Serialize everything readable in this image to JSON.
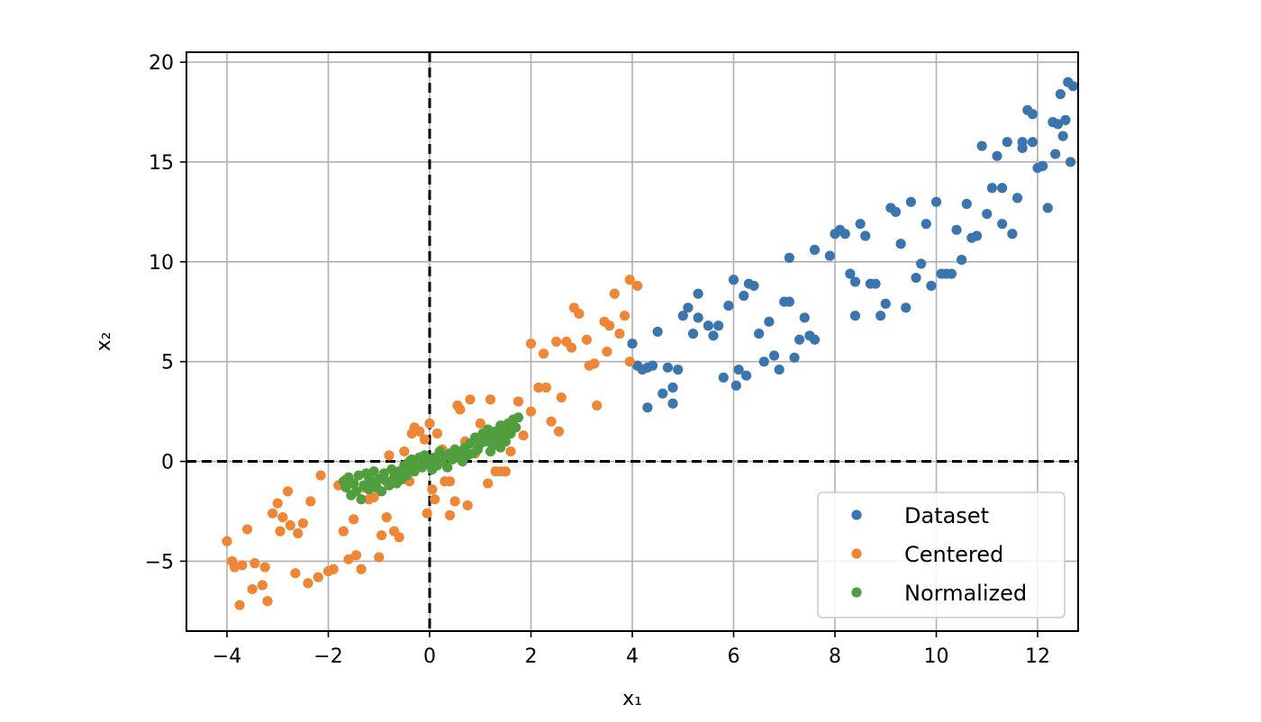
{
  "chart_data": {
    "type": "scatter",
    "title": "",
    "xlabel": "x₁",
    "ylabel": "x₂",
    "xlim": [
      -4.8,
      12.8
    ],
    "ylim": [
      -8.5,
      20.5
    ],
    "xticks": [
      -4,
      -2,
      0,
      2,
      4,
      6,
      8,
      10,
      12
    ],
    "yticks": [
      -5,
      0,
      5,
      10,
      15,
      20
    ],
    "xtick_labels": [
      "−4",
      "−2",
      "0",
      "2",
      "4",
      "6",
      "8",
      "10",
      "12"
    ],
    "ytick_labels": [
      "−5",
      "0",
      "5",
      "10",
      "15",
      "20"
    ],
    "grid": true,
    "reference_lines": {
      "x": 0,
      "y": 0,
      "style": "dashed"
    },
    "legend_position": "lower-right",
    "series": [
      {
        "name": "Dataset",
        "color": "#3b75af",
        "points": [
          [
            4.0,
            5.9
          ],
          [
            4.1,
            4.8
          ],
          [
            4.2,
            4.6
          ],
          [
            4.3,
            4.7
          ],
          [
            4.4,
            4.8
          ],
          [
            4.5,
            6.5
          ],
          [
            4.6,
            3.4
          ],
          [
            4.7,
            4.7
          ],
          [
            4.8,
            3.7
          ],
          [
            4.3,
            2.7
          ],
          [
            4.8,
            2.9
          ],
          [
            4.9,
            4.6
          ],
          [
            5.0,
            7.3
          ],
          [
            5.1,
            7.7
          ],
          [
            5.2,
            6.4
          ],
          [
            5.3,
            7.2
          ],
          [
            5.3,
            8.4
          ],
          [
            5.5,
            6.8
          ],
          [
            5.6,
            6.3
          ],
          [
            5.7,
            6.8
          ],
          [
            5.9,
            7.8
          ],
          [
            5.8,
            4.2
          ],
          [
            6.0,
            9.1
          ],
          [
            6.1,
            4.6
          ],
          [
            6.2,
            8.3
          ],
          [
            6.3,
            8.9
          ],
          [
            6.4,
            8.8
          ],
          [
            6.5,
            6.4
          ],
          [
            6.6,
            5.0
          ],
          [
            6.7,
            7.0
          ],
          [
            6.8,
            5.3
          ],
          [
            6.9,
            4.6
          ],
          [
            7.0,
            8.0
          ],
          [
            7.1,
            8.0
          ],
          [
            7.2,
            5.2
          ],
          [
            7.3,
            6.1
          ],
          [
            7.4,
            7.2
          ],
          [
            7.5,
            6.3
          ],
          [
            7.6,
            6.1
          ],
          [
            7.1,
            10.2
          ],
          [
            7.6,
            10.6
          ],
          [
            7.9,
            10.3
          ],
          [
            8.0,
            11.4
          ],
          [
            8.1,
            11.6
          ],
          [
            8.2,
            11.4
          ],
          [
            8.3,
            9.4
          ],
          [
            8.4,
            9.0
          ],
          [
            8.4,
            7.3
          ],
          [
            8.5,
            11.9
          ],
          [
            8.6,
            11.3
          ],
          [
            8.7,
            8.9
          ],
          [
            8.8,
            8.9
          ],
          [
            8.9,
            7.3
          ],
          [
            9.0,
            7.9
          ],
          [
            9.1,
            12.7
          ],
          [
            9.2,
            12.5
          ],
          [
            9.3,
            10.9
          ],
          [
            9.4,
            7.7
          ],
          [
            9.5,
            13.0
          ],
          [
            9.6,
            9.2
          ],
          [
            9.7,
            9.9
          ],
          [
            9.8,
            11.9
          ],
          [
            9.9,
            8.8
          ],
          [
            10.0,
            13.0
          ],
          [
            10.1,
            9.4
          ],
          [
            10.2,
            9.4
          ],
          [
            10.3,
            9.4
          ],
          [
            10.4,
            11.6
          ],
          [
            10.5,
            10.1
          ],
          [
            10.6,
            12.9
          ],
          [
            10.7,
            11.2
          ],
          [
            10.8,
            11.3
          ],
          [
            10.9,
            15.8
          ],
          [
            11.0,
            12.4
          ],
          [
            11.1,
            13.7
          ],
          [
            11.2,
            15.3
          ],
          [
            11.3,
            13.7
          ],
          [
            11.3,
            11.9
          ],
          [
            11.4,
            16.0
          ],
          [
            11.5,
            11.4
          ],
          [
            11.6,
            13.2
          ],
          [
            11.7,
            16.0
          ],
          [
            11.7,
            15.7
          ],
          [
            11.8,
            17.6
          ],
          [
            11.9,
            17.4
          ],
          [
            11.9,
            16.0
          ],
          [
            12.0,
            14.7
          ],
          [
            12.1,
            14.8
          ],
          [
            12.2,
            12.7
          ],
          [
            12.3,
            17.0
          ],
          [
            12.35,
            15.4
          ],
          [
            12.4,
            16.9
          ],
          [
            12.45,
            18.4
          ],
          [
            12.5,
            16.3
          ],
          [
            12.55,
            17.1
          ],
          [
            12.6,
            19.0
          ],
          [
            12.65,
            15.0
          ],
          [
            12.7,
            18.8
          ],
          [
            6.05,
            3.8
          ],
          [
            6.25,
            4.3
          ]
        ]
      },
      {
        "name": "Centered",
        "color": "#ef8636",
        "points": [
          [
            -4.0,
            -4.0
          ],
          [
            -3.9,
            -5.0
          ],
          [
            -3.85,
            -5.3
          ],
          [
            -3.7,
            -5.2
          ],
          [
            -3.75,
            -7.2
          ],
          [
            -3.6,
            -3.4
          ],
          [
            -3.5,
            -6.4
          ],
          [
            -3.45,
            -5.1
          ],
          [
            -3.3,
            -6.2
          ],
          [
            -3.25,
            -5.3
          ],
          [
            -3.2,
            -7.0
          ],
          [
            -3.1,
            -2.6
          ],
          [
            -3.0,
            -2.1
          ],
          [
            -2.95,
            -3.5
          ],
          [
            -2.9,
            -2.8
          ],
          [
            -2.8,
            -1.5
          ],
          [
            -2.75,
            -3.2
          ],
          [
            -2.65,
            -5.6
          ],
          [
            -2.6,
            -3.6
          ],
          [
            -2.5,
            -3.1
          ],
          [
            -2.4,
            -6.1
          ],
          [
            -2.35,
            -2.0
          ],
          [
            -2.2,
            -5.8
          ],
          [
            -2.15,
            -0.7
          ],
          [
            -2.0,
            -5.5
          ],
          [
            -1.9,
            -5.4
          ],
          [
            -1.8,
            -1.2
          ],
          [
            -1.7,
            -3.5
          ],
          [
            -1.65,
            -0.9
          ],
          [
            -1.6,
            -4.9
          ],
          [
            -1.5,
            -2.9
          ],
          [
            -1.45,
            -4.7
          ],
          [
            -1.35,
            -5.4
          ],
          [
            -1.3,
            -1.3
          ],
          [
            -1.2,
            -1.9
          ],
          [
            -1.1,
            -1.8
          ],
          [
            -1.0,
            -4.8
          ],
          [
            -0.95,
            -3.7
          ],
          [
            -0.85,
            -2.8
          ],
          [
            -0.8,
            0.3
          ],
          [
            -0.7,
            -3.5
          ],
          [
            -0.6,
            -3.8
          ],
          [
            -0.5,
            0.5
          ],
          [
            -0.4,
            -1.0
          ],
          [
            -0.35,
            1.4
          ],
          [
            -0.3,
            1.7
          ],
          [
            -0.2,
            1.5
          ],
          [
            -0.1,
            1.1
          ],
          [
            0.0,
            1.9
          ],
          [
            -0.05,
            -2.6
          ],
          [
            0.05,
            -1.4
          ],
          [
            0.1,
            -1.9
          ],
          [
            0.15,
            1.4
          ],
          [
            0.25,
            0.6
          ],
          [
            0.3,
            -1.0
          ],
          [
            0.4,
            -1.0
          ],
          [
            0.4,
            -2.7
          ],
          [
            0.5,
            -2.0
          ],
          [
            0.55,
            2.8
          ],
          [
            0.6,
            2.6
          ],
          [
            0.7,
            1.0
          ],
          [
            0.75,
            -2.2
          ],
          [
            0.8,
            3.1
          ],
          [
            0.9,
            0.4
          ],
          [
            1.0,
            1.9
          ],
          [
            1.1,
            1.1
          ],
          [
            1.15,
            -1.1
          ],
          [
            1.2,
            3.1
          ],
          [
            1.3,
            -0.5
          ],
          [
            1.4,
            -0.5
          ],
          [
            1.5,
            -0.5
          ],
          [
            1.6,
            0.5
          ],
          [
            1.75,
            3.0
          ],
          [
            1.85,
            1.3
          ],
          [
            2.0,
            2.5
          ],
          [
            2.0,
            5.9
          ],
          [
            2.15,
            3.7
          ],
          [
            2.25,
            5.4
          ],
          [
            2.3,
            3.7
          ],
          [
            2.4,
            2.0
          ],
          [
            2.5,
            6.0
          ],
          [
            2.55,
            1.5
          ],
          [
            2.6,
            3.2
          ],
          [
            2.7,
            6.0
          ],
          [
            2.8,
            5.7
          ],
          [
            2.85,
            7.7
          ],
          [
            2.95,
            7.4
          ],
          [
            3.1,
            6.1
          ],
          [
            3.15,
            4.8
          ],
          [
            3.25,
            4.9
          ],
          [
            3.3,
            2.8
          ],
          [
            3.45,
            7.0
          ],
          [
            3.55,
            6.8
          ],
          [
            3.65,
            8.4
          ],
          [
            3.75,
            6.4
          ],
          [
            3.85,
            7.3
          ],
          [
            3.95,
            9.1
          ],
          [
            4.1,
            8.8
          ],
          [
            3.95,
            5.0
          ],
          [
            3.5,
            5.5
          ]
        ]
      },
      {
        "name": "Normalized",
        "color": "#519e3e",
        "points": [
          [
            -1.7,
            -1.0
          ],
          [
            -1.65,
            -1.3
          ],
          [
            -1.6,
            -0.8
          ],
          [
            -1.55,
            -1.7
          ],
          [
            -1.5,
            -1.1
          ],
          [
            -1.45,
            -1.5
          ],
          [
            -1.4,
            -0.7
          ],
          [
            -1.35,
            -1.9
          ],
          [
            -1.3,
            -1.2
          ],
          [
            -1.25,
            -0.6
          ],
          [
            -1.2,
            -1.4
          ],
          [
            -1.15,
            -1.0
          ],
          [
            -1.1,
            -0.5
          ],
          [
            -1.05,
            -1.3
          ],
          [
            -1.0,
            -0.9
          ],
          [
            -0.95,
            -1.5
          ],
          [
            -0.9,
            -0.6
          ],
          [
            -0.85,
            -1.0
          ],
          [
            -0.8,
            -1.2
          ],
          [
            -0.75,
            -0.4
          ],
          [
            -0.7,
            -0.8
          ],
          [
            -0.65,
            -1.1
          ],
          [
            -0.6,
            -0.5
          ],
          [
            -0.55,
            -0.9
          ],
          [
            -0.5,
            -0.2
          ],
          [
            -0.45,
            -0.7
          ],
          [
            -0.4,
            -0.4
          ],
          [
            -0.35,
            0.1
          ],
          [
            -0.3,
            -0.5
          ],
          [
            -0.25,
            -0.1
          ],
          [
            -0.2,
            0.2
          ],
          [
            -0.15,
            -0.3
          ],
          [
            -0.1,
            0.3
          ],
          [
            -0.05,
            -0.1
          ],
          [
            0.0,
            0.1
          ],
          [
            0.05,
            -0.4
          ],
          [
            0.1,
            0.2
          ],
          [
            0.15,
            -0.2
          ],
          [
            0.2,
            0.5
          ],
          [
            0.25,
            0.0
          ],
          [
            0.3,
            0.3
          ],
          [
            0.35,
            -0.3
          ],
          [
            0.4,
            0.4
          ],
          [
            0.45,
            0.1
          ],
          [
            0.5,
            0.6
          ],
          [
            0.55,
            0.2
          ],
          [
            0.6,
            0.5
          ],
          [
            0.65,
            0.0
          ],
          [
            0.7,
            0.7
          ],
          [
            0.75,
            0.3
          ],
          [
            0.8,
            0.9
          ],
          [
            0.85,
            0.4
          ],
          [
            0.9,
            1.2
          ],
          [
            0.95,
            0.6
          ],
          [
            1.0,
            0.9
          ],
          [
            1.05,
            1.4
          ],
          [
            1.1,
            1.0
          ],
          [
            1.15,
            1.6
          ],
          [
            1.2,
            1.2
          ],
          [
            1.25,
            0.8
          ],
          [
            1.3,
            1.5
          ],
          [
            1.35,
            1.1
          ],
          [
            1.4,
            1.8
          ],
          [
            1.45,
            1.3
          ],
          [
            1.5,
            1.6
          ],
          [
            1.55,
            1.9
          ],
          [
            1.6,
            1.4
          ],
          [
            1.65,
            2.1
          ],
          [
            1.7,
            1.7
          ],
          [
            1.75,
            2.2
          ],
          [
            1.4,
            0.7
          ],
          [
            1.5,
            1.0
          ],
          [
            -1.2,
            -0.8
          ],
          [
            -0.4,
            0.0
          ],
          [
            0.6,
            0.3
          ],
          [
            1.2,
            0.5
          ]
        ]
      }
    ]
  }
}
